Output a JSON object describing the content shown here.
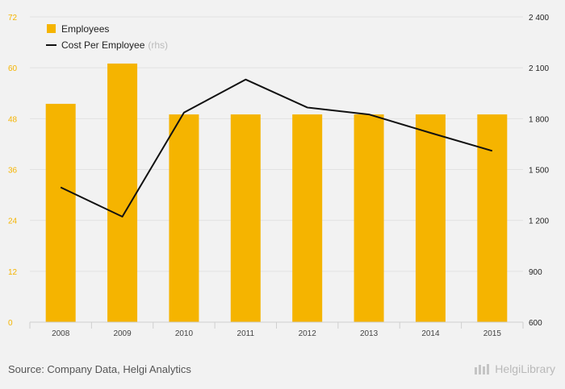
{
  "chart_data": {
    "type": "bar+line",
    "categories": [
      "2008",
      "2009",
      "2010",
      "2011",
      "2012",
      "2013",
      "2014",
      "2015"
    ],
    "series": [
      {
        "name": "Employees",
        "type": "bar",
        "axis": "left",
        "color": "#f5b400",
        "values": [
          51.5,
          61,
          49,
          49,
          49,
          49,
          49,
          49
        ]
      },
      {
        "name": "Cost Per Employee",
        "name_suffix": "(rhs)",
        "type": "line",
        "axis": "right",
        "color": "#111111",
        "values": [
          1395,
          1222,
          1836,
          2031,
          1866,
          1825,
          1716,
          1610
        ]
      }
    ],
    "y_left": {
      "min": 0,
      "max": 72,
      "ticks": [
        "0",
        "12",
        "24",
        "36",
        "48",
        "60",
        "72"
      ]
    },
    "y_right": {
      "min": 600,
      "max": 2400,
      "ticks": [
        "600",
        "900",
        "1 200",
        "1 500",
        "1 800",
        "2 100",
        "2 400"
      ]
    },
    "grid": true,
    "legend_position": "top-left"
  },
  "footer": {
    "source": "Source: Company Data, Helgi Analytics",
    "brand": "HelgiLibrary"
  }
}
